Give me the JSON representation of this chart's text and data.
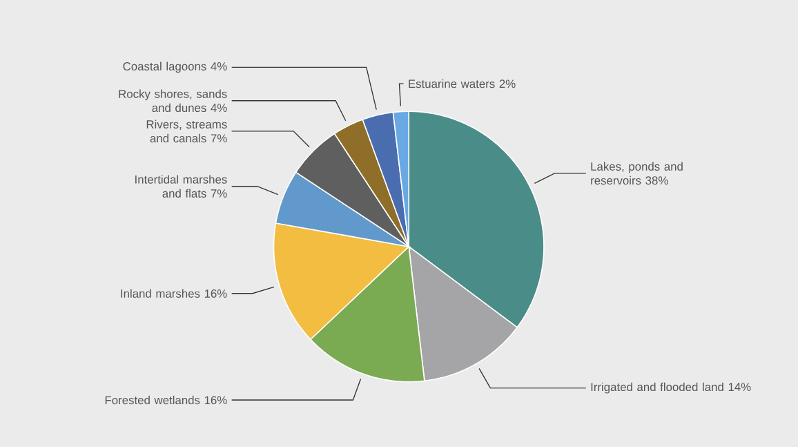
{
  "chart_data": {
    "type": "pie",
    "categories": [
      "Lakes, ponds and reservoirs",
      "Irrigated and flooded land",
      "Forested wetlands",
      "Inland marshes",
      "Intertidal marshes and flats",
      "Rivers, streams and canals",
      "Rocky shores, sands and dunes",
      "Coastal lagoons",
      "Estuarine waters"
    ],
    "values": [
      38,
      14,
      16,
      16,
      7,
      7,
      4,
      4,
      2
    ],
    "value_labels": [
      "38%",
      "14%",
      "16%",
      "16%",
      "7%",
      "7%",
      "4%",
      "4%",
      "2%"
    ],
    "colors": [
      "#4a8c88",
      "#a5a5a8",
      "#7aaa52",
      "#f2bd40",
      "#6299cc",
      "#5f5f5f",
      "#8e6e28",
      "#4a6db0",
      "#6aa8e4"
    ]
  }
}
